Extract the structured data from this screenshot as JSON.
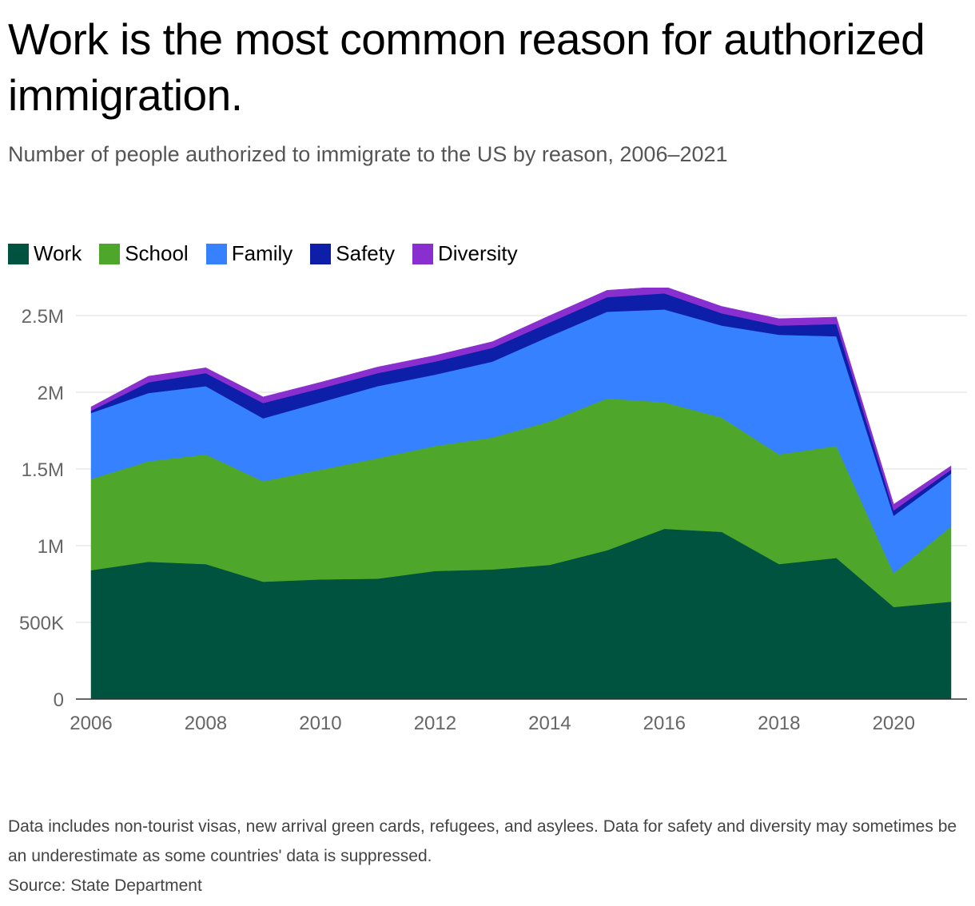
{
  "title": "Work is the most common reason for authorized immigration.",
  "subtitle": "Number of people authorized to immigrate to the US by reason, 2006–2021",
  "footnote": {
    "note": "Data includes non-tourist visas, new arrival green cards, refugees, and asylees. Data for safety and diversity may sometimes be an underestimate as some countries' data is suppressed.",
    "source": "Source: State Department"
  },
  "chart_data": {
    "type": "area",
    "stacked": true,
    "x": [
      2006,
      2007,
      2008,
      2009,
      2010,
      2011,
      2012,
      2013,
      2014,
      2015,
      2016,
      2017,
      2018,
      2019,
      2020,
      2021
    ],
    "xticks": [
      2006,
      2008,
      2010,
      2012,
      2014,
      2016,
      2018,
      2020
    ],
    "yticks": [
      {
        "value": 0,
        "label": "0"
      },
      {
        "value": 500000,
        "label": "500K"
      },
      {
        "value": 1000000,
        "label": "1M"
      },
      {
        "value": 1500000,
        "label": "1.5M"
      },
      {
        "value": 2000000,
        "label": "2M"
      },
      {
        "value": 2500000,
        "label": "2.5M"
      }
    ],
    "ylim": [
      0,
      2700000
    ],
    "grid": true,
    "legend_position": "top-left",
    "series": [
      {
        "name": "Work",
        "color": "#00533f",
        "values": [
          840000,
          895000,
          880000,
          765000,
          780000,
          785000,
          835000,
          845000,
          875000,
          970000,
          1110000,
          1090000,
          880000,
          920000,
          600000,
          635000
        ]
      },
      {
        "name": "School",
        "color": "#4ea72a",
        "values": [
          595000,
          655000,
          715000,
          655000,
          715000,
          785000,
          815000,
          860000,
          935000,
          990000,
          825000,
          745000,
          715000,
          730000,
          220000,
          490000
        ]
      },
      {
        "name": "Family",
        "color": "#3581ff",
        "values": [
          430000,
          445000,
          445000,
          410000,
          440000,
          470000,
          465000,
          495000,
          555000,
          565000,
          605000,
          600000,
          780000,
          715000,
          375000,
          345000
        ]
      },
      {
        "name": "Safety",
        "color": "#0d1fa8",
        "values": [
          15000,
          70000,
          85000,
          100000,
          90000,
          85000,
          85000,
          90000,
          90000,
          95000,
          105000,
          80000,
          60000,
          80000,
          35000,
          25000
        ]
      },
      {
        "name": "Diversity",
        "color": "#8a2fcf",
        "values": [
          25000,
          40000,
          35000,
          40000,
          40000,
          40000,
          40000,
          40000,
          45000,
          45000,
          45000,
          45000,
          45000,
          45000,
          40000,
          25000
        ]
      }
    ]
  }
}
